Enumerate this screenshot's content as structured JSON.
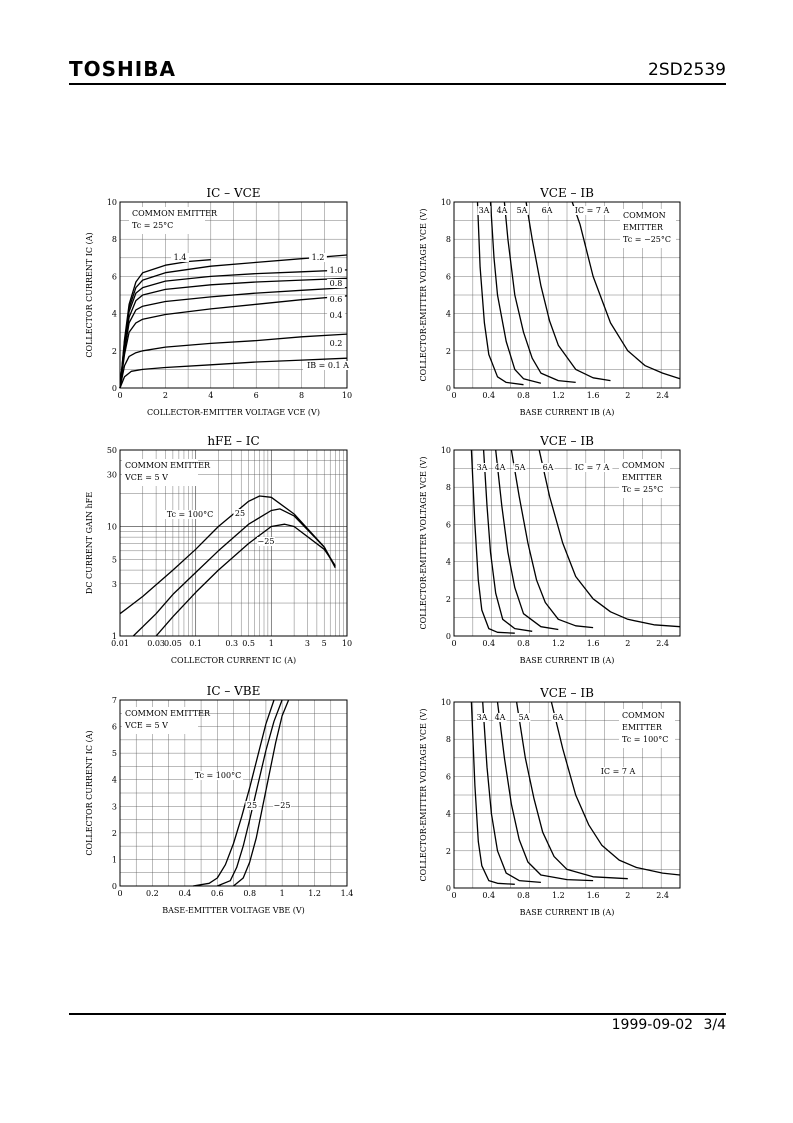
{
  "header": {
    "brand": "TOSHIBA",
    "part_number": "2SD2539"
  },
  "footer": {
    "date": "1999-09-02",
    "page": "3/4"
  },
  "chart_data": [
    {
      "id": "ic_vce",
      "type": "line",
      "title": "IC – VCE",
      "xlabel": "COLLECTOR-EMITTER VOLTAGE VCE (V)",
      "ylabel": "COLLECTOR CURRENT IC (A)",
      "xlim": [
        0,
        10
      ],
      "ylim": [
        0,
        10
      ],
      "xticks": [
        0,
        2,
        4,
        6,
        8,
        10
      ],
      "yticks": [
        0,
        2,
        4,
        6,
        8,
        10
      ],
      "xscale": "linear",
      "yscale": "linear",
      "grid": true,
      "annotations": [
        "COMMON EMITTER",
        "Tc = 25°C"
      ],
      "series": [
        {
          "name": "IB = 0.1 A",
          "x": [
            0,
            0.2,
            0.5,
            1,
            2,
            4,
            6,
            8,
            10
          ],
          "y": [
            0,
            0.6,
            0.9,
            1.0,
            1.1,
            1.25,
            1.4,
            1.5,
            1.6
          ]
        },
        {
          "name": "0.2",
          "x": [
            0,
            0.2,
            0.4,
            0.7,
            1,
            2,
            4,
            6,
            8,
            10
          ],
          "y": [
            0,
            1.2,
            1.7,
            1.9,
            2.0,
            2.2,
            2.4,
            2.55,
            2.75,
            2.9
          ]
        },
        {
          "name": "0.4",
          "x": [
            0,
            0.2,
            0.4,
            0.7,
            1,
            2,
            4,
            6,
            8,
            10
          ],
          "y": [
            0,
            1.8,
            3.0,
            3.5,
            3.7,
            3.95,
            4.25,
            4.5,
            4.75,
            4.95
          ]
        },
        {
          "name": "0.6",
          "x": [
            0,
            0.2,
            0.4,
            0.7,
            1,
            2,
            4,
            6,
            8,
            10
          ],
          "y": [
            0,
            2.0,
            3.5,
            4.2,
            4.4,
            4.65,
            4.9,
            5.1,
            5.25,
            5.4
          ]
        },
        {
          "name": "0.8",
          "x": [
            0,
            0.2,
            0.4,
            0.7,
            1,
            2,
            4,
            6,
            8,
            10
          ],
          "y": [
            0,
            2.2,
            3.8,
            4.7,
            5.0,
            5.3,
            5.55,
            5.7,
            5.8,
            5.9
          ]
        },
        {
          "name": "1.0",
          "x": [
            0,
            0.2,
            0.4,
            0.7,
            1,
            2,
            4,
            6,
            8,
            10
          ],
          "y": [
            0,
            2.4,
            4.1,
            5.1,
            5.4,
            5.75,
            6.0,
            6.15,
            6.25,
            6.35
          ]
        },
        {
          "name": "1.2",
          "x": [
            0,
            0.2,
            0.4,
            0.7,
            1,
            2,
            4,
            6,
            8,
            10
          ],
          "y": [
            0,
            2.5,
            4.3,
            5.4,
            5.8,
            6.2,
            6.55,
            6.75,
            6.95,
            7.15
          ]
        },
        {
          "name": "1.4",
          "x": [
            0,
            0.2,
            0.4,
            0.7,
            1,
            2,
            3,
            4
          ],
          "y": [
            0,
            2.6,
            4.5,
            5.7,
            6.2,
            6.6,
            6.8,
            6.9
          ]
        }
      ],
      "curve_labels": [
        "1.4",
        "1.2",
        "1.0",
        "0.8",
        "0.6",
        "0.4",
        "0.2",
        "IB = 0.1 A"
      ]
    },
    {
      "id": "vce_ib_m25",
      "type": "line",
      "title": "VCE – IB",
      "xlabel": "BASE CURRENT IB (A)",
      "ylabel": "COLLECTOR-EMITTER VOLTAGE VCE (V)",
      "xlim": [
        0,
        2.6
      ],
      "ylim": [
        0,
        10
      ],
      "xticks": [
        0,
        0.4,
        0.8,
        1.2,
        1.6,
        2.0,
        2.4
      ],
      "yticks": [
        0,
        2,
        4,
        6,
        8,
        10
      ],
      "xscale": "linear",
      "yscale": "linear",
      "grid": true,
      "annotations": [
        "COMMON",
        "EMITTER",
        "Tc = −25°C"
      ],
      "series": [
        {
          "name": "3A",
          "x": [
            0.27,
            0.3,
            0.35,
            0.4,
            0.5,
            0.6,
            0.8
          ],
          "y": [
            10,
            6.5,
            3.5,
            1.8,
            0.6,
            0.3,
            0.18
          ]
        },
        {
          "name": "4A",
          "x": [
            0.42,
            0.46,
            0.5,
            0.6,
            0.7,
            0.8,
            1.0
          ],
          "y": [
            10,
            7.0,
            5.0,
            2.5,
            1.0,
            0.5,
            0.25
          ]
        },
        {
          "name": "5A",
          "x": [
            0.58,
            0.62,
            0.7,
            0.8,
            0.9,
            1.0,
            1.2,
            1.4
          ],
          "y": [
            10,
            8.0,
            5.0,
            3.0,
            1.6,
            0.8,
            0.4,
            0.3
          ]
        },
        {
          "name": "6A",
          "x": [
            0.83,
            0.9,
            1.0,
            1.1,
            1.2,
            1.4,
            1.6,
            1.8
          ],
          "y": [
            10,
            8.0,
            5.5,
            3.6,
            2.3,
            1.0,
            0.55,
            0.4
          ]
        },
        {
          "name": "IC = 7 A",
          "x": [
            1.36,
            1.45,
            1.6,
            1.8,
            2.0,
            2.2,
            2.4,
            2.6
          ],
          "y": [
            10,
            8.8,
            6.0,
            3.5,
            2.0,
            1.2,
            0.8,
            0.5
          ]
        }
      ],
      "curve_labels": [
        "3A",
        "4A",
        "5A",
        "6A",
        "IC = 7 A"
      ]
    },
    {
      "id": "hfe_ic",
      "type": "line",
      "title": "hFE – IC",
      "xlabel": "COLLECTOR CURRENT IC (A)",
      "ylabel": "DC CURRENT GAIN hFE",
      "xlim": [
        0.01,
        10
      ],
      "ylim": [
        1,
        50
      ],
      "xticks": [
        0.01,
        0.03,
        0.05,
        0.1,
        0.3,
        0.5,
        1,
        3,
        5,
        10
      ],
      "xticklabels": [
        "0.01",
        "0.03",
        "0.05",
        "0.1",
        "0.3",
        "0.5",
        "1",
        "3",
        "5",
        "10"
      ],
      "yticks": [
        1,
        3,
        5,
        10,
        30,
        50
      ],
      "xscale": "log",
      "yscale": "log",
      "grid": true,
      "annotations": [
        "COMMON EMITTER",
        "VCE = 5 V"
      ],
      "series": [
        {
          "name": "Tc = 100°C",
          "x": [
            0.01,
            0.02,
            0.05,
            0.1,
            0.2,
            0.5,
            0.7,
            1,
            2,
            5,
            7
          ],
          "y": [
            1.6,
            2.3,
            4.0,
            6.2,
            10,
            17,
            19,
            18.5,
            13,
            6.5,
            4.2
          ]
        },
        {
          "name": "25",
          "x": [
            0.015,
            0.03,
            0.05,
            0.1,
            0.2,
            0.5,
            1,
            1.3,
            2,
            5,
            7
          ],
          "y": [
            1.0,
            1.6,
            2.4,
            3.8,
            6.0,
            10.5,
            14.0,
            14.5,
            12.5,
            6.5,
            4.3
          ]
        },
        {
          "name": "−25",
          "x": [
            0.03,
            0.05,
            0.1,
            0.2,
            0.5,
            1,
            1.5,
            2,
            5,
            7
          ],
          "y": [
            1.0,
            1.5,
            2.5,
            4.0,
            7.0,
            10.0,
            10.5,
            10.0,
            6.2,
            4.4
          ]
        }
      ],
      "curve_labels": [
        "Tc = 100°C",
        "25",
        "−25"
      ]
    },
    {
      "id": "vce_ib_25",
      "type": "line",
      "title": "VCE – IB",
      "xlabel": "BASE CURRENT IB (A)",
      "ylabel": "COLLECTOR-EMITTER VOLTAGE VCE (V)",
      "xlim": [
        0,
        2.6
      ],
      "ylim": [
        0,
        10
      ],
      "xticks": [
        0,
        0.4,
        0.8,
        1.2,
        1.6,
        2.0,
        2.4
      ],
      "yticks": [
        0,
        2,
        4,
        6,
        8,
        10
      ],
      "xscale": "linear",
      "yscale": "linear",
      "grid": true,
      "annotations": [
        "COMMON",
        "EMITTER",
        "Tc = 25°C"
      ],
      "series": [
        {
          "name": "3A",
          "x": [
            0.2,
            0.24,
            0.28,
            0.32,
            0.4,
            0.5,
            0.7
          ],
          "y": [
            10,
            6.0,
            3.0,
            1.4,
            0.4,
            0.2,
            0.15
          ]
        },
        {
          "name": "4A",
          "x": [
            0.34,
            0.38,
            0.42,
            0.48,
            0.56,
            0.7,
            0.9
          ],
          "y": [
            10,
            7.0,
            4.5,
            2.3,
            0.9,
            0.4,
            0.25
          ]
        },
        {
          "name": "5A",
          "x": [
            0.48,
            0.55,
            0.62,
            0.7,
            0.8,
            1.0,
            1.2
          ],
          "y": [
            10,
            7.0,
            4.5,
            2.6,
            1.2,
            0.5,
            0.35
          ]
        },
        {
          "name": "6A",
          "x": [
            0.66,
            0.75,
            0.85,
            0.95,
            1.05,
            1.2,
            1.4,
            1.6
          ],
          "y": [
            10,
            7.5,
            5.0,
            3.0,
            1.8,
            0.9,
            0.55,
            0.45
          ]
        },
        {
          "name": "IC = 7 A",
          "x": [
            0.98,
            1.1,
            1.25,
            1.4,
            1.6,
            1.8,
            2.0,
            2.3,
            2.6
          ],
          "y": [
            10,
            7.5,
            5.0,
            3.2,
            2.0,
            1.3,
            0.9,
            0.6,
            0.5
          ]
        }
      ],
      "curve_labels": [
        "3A",
        "4A",
        "5A",
        "6A",
        "IC = 7 A"
      ]
    },
    {
      "id": "ic_vbe",
      "type": "line",
      "title": "IC – VBE",
      "xlabel": "BASE-EMITTER VOLTAGE VBE (V)",
      "ylabel": "COLLECTOR CURRENT IC (A)",
      "xlim": [
        0,
        1.4
      ],
      "ylim": [
        0,
        7
      ],
      "xticks": [
        0,
        0.2,
        0.4,
        0.6,
        0.8,
        1.0,
        1.2,
        1.4
      ],
      "yticks": [
        0,
        1,
        2,
        3,
        4,
        5,
        6,
        7
      ],
      "xscale": "linear",
      "yscale": "linear",
      "grid": true,
      "annotations": [
        "COMMON EMITTER",
        "VCE = 5 V"
      ],
      "series": [
        {
          "name": "Tc = 100°C",
          "x": [
            0.45,
            0.55,
            0.6,
            0.65,
            0.7,
            0.75,
            0.8,
            0.85,
            0.9,
            0.95
          ],
          "y": [
            0,
            0.1,
            0.3,
            0.8,
            1.6,
            2.6,
            3.7,
            4.9,
            6.1,
            7
          ]
        },
        {
          "name": "25",
          "x": [
            0.6,
            0.68,
            0.72,
            0.76,
            0.8,
            0.85,
            0.9,
            0.95,
            1.0
          ],
          "y": [
            0,
            0.2,
            0.7,
            1.5,
            2.5,
            3.8,
            5.1,
            6.2,
            7
          ]
        },
        {
          "name": "−25",
          "x": [
            0.7,
            0.76,
            0.8,
            0.84,
            0.88,
            0.92,
            0.96,
            1.0,
            1.04
          ],
          "y": [
            0,
            0.3,
            0.9,
            1.8,
            3.0,
            4.2,
            5.4,
            6.4,
            7
          ]
        }
      ],
      "curve_labels": [
        "Tc = 100°C",
        "25",
        "−25"
      ]
    },
    {
      "id": "vce_ib_100",
      "type": "line",
      "title": "VCE – IB",
      "xlabel": "BASE CURRENT IB (A)",
      "ylabel": "COLLECTOR-EMITTER VOLTAGE VCE (V)",
      "xlim": [
        0,
        2.6
      ],
      "ylim": [
        0,
        10
      ],
      "xticks": [
        0,
        0.4,
        0.8,
        1.2,
        1.6,
        2.0,
        2.4
      ],
      "yticks": [
        0,
        2,
        4,
        6,
        8,
        10
      ],
      "xscale": "linear",
      "yscale": "linear",
      "grid": true,
      "annotations": [
        "COMMON",
        "EMITTER",
        "Tc = 100°C"
      ],
      "series": [
        {
          "name": "3A",
          "x": [
            0.2,
            0.24,
            0.28,
            0.32,
            0.4,
            0.5,
            0.7
          ],
          "y": [
            10,
            5.5,
            2.5,
            1.2,
            0.4,
            0.25,
            0.2
          ]
        },
        {
          "name": "4A",
          "x": [
            0.33,
            0.38,
            0.43,
            0.5,
            0.6,
            0.75,
            1.0
          ],
          "y": [
            10,
            6.5,
            4.0,
            2.0,
            0.8,
            0.4,
            0.3
          ]
        },
        {
          "name": "5A",
          "x": [
            0.5,
            0.58,
            0.66,
            0.75,
            0.85,
            1.0,
            1.3,
            1.6
          ],
          "y": [
            10,
            7.0,
            4.5,
            2.6,
            1.4,
            0.7,
            0.45,
            0.4
          ]
        },
        {
          "name": "6A",
          "x": [
            0.72,
            0.82,
            0.92,
            1.02,
            1.15,
            1.3,
            1.6,
            2.0
          ],
          "y": [
            10,
            7.0,
            4.8,
            3.0,
            1.7,
            1.0,
            0.6,
            0.5
          ]
        },
        {
          "name": "IC = 7 A",
          "x": [
            1.12,
            1.25,
            1.4,
            1.55,
            1.7,
            1.9,
            2.1,
            2.4,
            2.6
          ],
          "y": [
            10,
            7.5,
            5.0,
            3.4,
            2.3,
            1.5,
            1.1,
            0.8,
            0.7
          ]
        }
      ],
      "curve_labels": [
        "3A",
        "4A",
        "5A",
        "6A",
        "IC = 7 A"
      ]
    }
  ]
}
